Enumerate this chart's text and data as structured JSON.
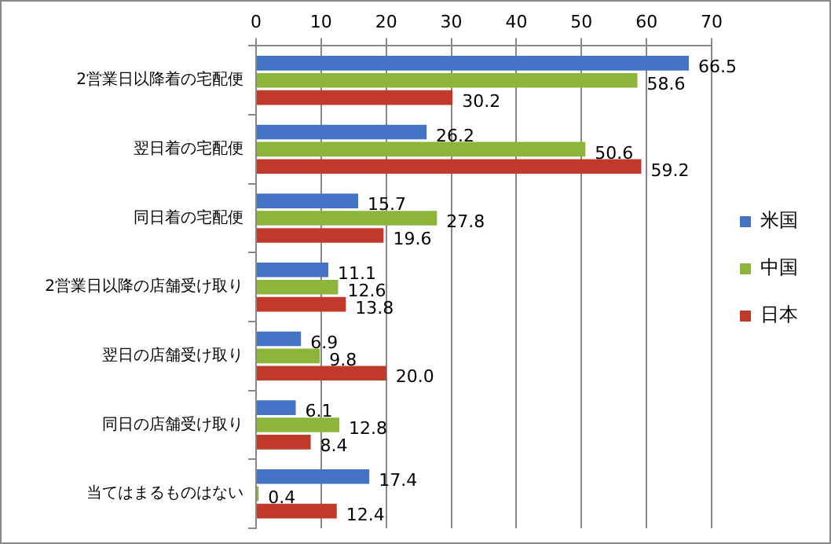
{
  "chart_data": {
    "type": "bar",
    "orientation": "horizontal",
    "categories": [
      "2営業日以降着の宅配便",
      "翌日着の宅配便",
      "同日着の宅配便",
      "2営業日以降の店舗受け取り",
      "翌日の店舗受け取り",
      "同日の店舗受け取り",
      "当てはまるものはない"
    ],
    "series": [
      {
        "name": "米国",
        "color": "#4472c4",
        "values": [
          66.5,
          26.2,
          15.7,
          11.1,
          6.9,
          6.1,
          17.4
        ],
        "value_labels": [
          "66.5",
          "26.2",
          "15.7",
          "11.1",
          "6.9",
          "6.1",
          "17.4"
        ]
      },
      {
        "name": "中国",
        "color": "#8db53c",
        "values": [
          58.6,
          50.6,
          27.8,
          12.6,
          9.8,
          12.8,
          0.4
        ],
        "value_labels": [
          "58.6",
          "50.6",
          "27.8",
          "12.6",
          "9.8",
          "12.8",
          "0.4"
        ]
      },
      {
        "name": "日本",
        "color": "#c0392b",
        "values": [
          30.2,
          59.2,
          19.6,
          13.8,
          20.0,
          8.4,
          12.4
        ],
        "value_labels": [
          "30.2",
          "59.2",
          "19.6",
          "13.8",
          "20.0",
          "8.4",
          "12.4"
        ]
      }
    ],
    "xlim": [
      0,
      70
    ],
    "xticks": [
      0,
      10,
      20,
      30,
      40,
      50,
      60,
      70
    ],
    "grid": "x",
    "legend": "right"
  }
}
